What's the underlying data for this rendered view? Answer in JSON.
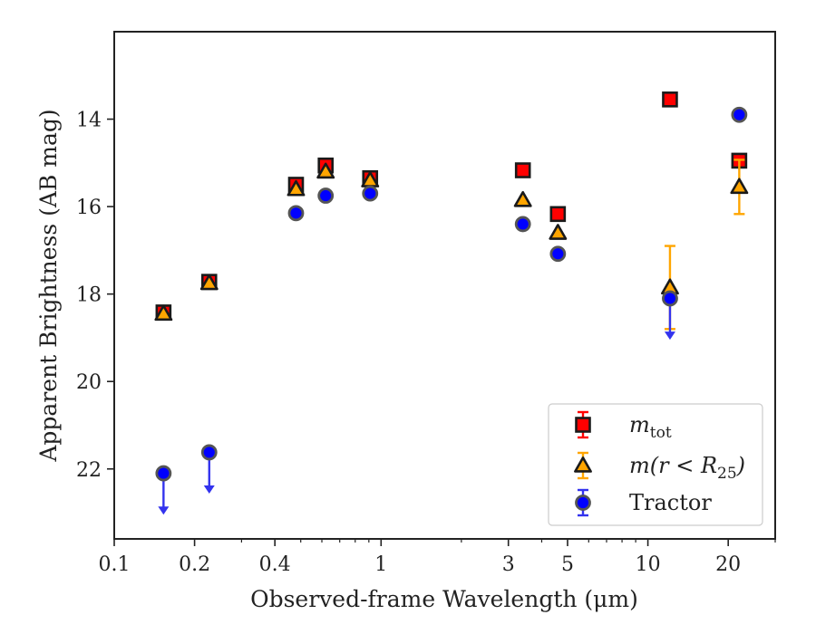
{
  "chart_data": {
    "type": "scatter",
    "xscale": "log",
    "xlim": [
      0.1,
      30
    ],
    "ylim": [
      23.6,
      12.0
    ],
    "y_inverted": true,
    "xlabel": "Observed-frame Wavelength (μm)",
    "ylabel": "Apparent Brightness (AB mag)",
    "x_ticks": [
      {
        "value": 0.1,
        "label": "0.1"
      },
      {
        "value": 0.2,
        "label": "0.2"
      },
      {
        "value": 0.4,
        "label": "0.4"
      },
      {
        "value": 1,
        "label": "1"
      },
      {
        "value": 3,
        "label": "3"
      },
      {
        "value": 5,
        "label": "5"
      },
      {
        "value": 10,
        "label": "10"
      },
      {
        "value": 20,
        "label": "20"
      }
    ],
    "y_ticks": [
      {
        "value": 14,
        "label": "14"
      },
      {
        "value": 16,
        "label": "16"
      },
      {
        "value": 18,
        "label": "18"
      },
      {
        "value": 20,
        "label": "20"
      },
      {
        "value": 22,
        "label": "22"
      }
    ],
    "grid": false,
    "legend_position": "lower-right",
    "series": [
      {
        "name_main": "m",
        "name_sub": "tot",
        "marker": "square",
        "color": "#ff0000",
        "edge": "#1a1a1a",
        "errcolor": "#ff0000",
        "points": [
          {
            "x": 0.153,
            "y": 18.42
          },
          {
            "x": 0.227,
            "y": 17.72
          },
          {
            "x": 0.48,
            "y": 15.5
          },
          {
            "x": 0.62,
            "y": 15.06
          },
          {
            "x": 0.91,
            "y": 15.35
          },
          {
            "x": 3.4,
            "y": 15.17
          },
          {
            "x": 4.6,
            "y": 16.17
          },
          {
            "x": 12.1,
            "y": 13.55
          },
          {
            "x": 22.0,
            "y": 14.95
          }
        ]
      },
      {
        "name_main": "m(r < R",
        "name_sub": "25",
        "name_tail": ")",
        "marker": "triangle",
        "color": "#ffa500",
        "edge": "#1a1a1a",
        "errcolor": "#ffa500",
        "points": [
          {
            "x": 0.153,
            "y": 18.45
          },
          {
            "x": 0.227,
            "y": 17.75
          },
          {
            "x": 0.48,
            "y": 15.6
          },
          {
            "x": 0.62,
            "y": 15.2
          },
          {
            "x": 0.91,
            "y": 15.4
          },
          {
            "x": 3.4,
            "y": 15.85
          },
          {
            "x": 4.6,
            "y": 16.6
          },
          {
            "x": 12.1,
            "y": 17.85,
            "err": 0.95
          },
          {
            "x": 22.0,
            "y": 15.55,
            "err": 0.62
          }
        ]
      },
      {
        "name_main": "Tractor",
        "marker": "circle",
        "color": "#0000ff",
        "edge": "#555555",
        "errcolor": "#3333ee",
        "points": [
          {
            "x": 0.153,
            "y": 22.1,
            "upper_limit": true
          },
          {
            "x": 0.227,
            "y": 21.62,
            "upper_limit": true
          },
          {
            "x": 0.48,
            "y": 16.15
          },
          {
            "x": 0.62,
            "y": 15.75
          },
          {
            "x": 0.91,
            "y": 15.7
          },
          {
            "x": 3.4,
            "y": 16.4
          },
          {
            "x": 4.6,
            "y": 17.08
          },
          {
            "x": 12.1,
            "y": 18.1,
            "upper_limit": true
          },
          {
            "x": 22.0,
            "y": 13.9
          }
        ]
      }
    ]
  }
}
